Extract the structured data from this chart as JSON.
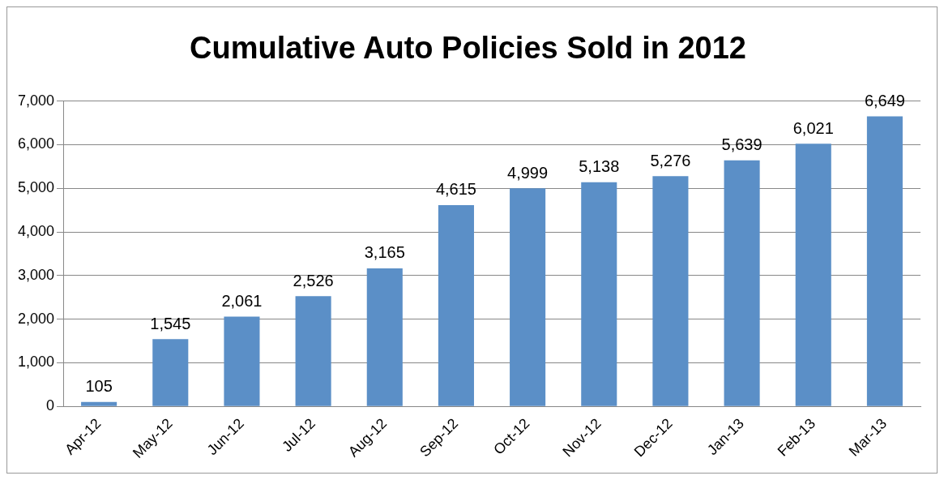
{
  "chart_data": {
    "type": "bar",
    "title": "Cumulative Auto Policies Sold in 2012",
    "categories": [
      "Apr-12",
      "May-12",
      "Jun-12",
      "Jul-12",
      "Aug-12",
      "Sep-12",
      "Oct-12",
      "Nov-12",
      "Dec-12",
      "Jan-13",
      "Feb-13",
      "Mar-13"
    ],
    "values": [
      105,
      1545,
      2061,
      2526,
      3165,
      4615,
      4999,
      5138,
      5276,
      5639,
      6021,
      6649
    ],
    "color": "#5b8fc7",
    "ylim": [
      0,
      7000
    ],
    "yticks": [
      {
        "value": 0,
        "label": "0"
      },
      {
        "value": 1000,
        "label": "1,000"
      },
      {
        "value": 2000,
        "label": "2,000"
      },
      {
        "value": 3000,
        "label": "3,000"
      },
      {
        "value": 4000,
        "label": "4,000"
      },
      {
        "value": 5000,
        "label": "5,000"
      },
      {
        "value": 6000,
        "label": "6,000"
      },
      {
        "value": 7000,
        "label": "7,000"
      }
    ],
    "value_labels": [
      "105",
      "1,545",
      "2,061",
      "2,526",
      "3,165",
      "4,615",
      "4,999",
      "5,138",
      "5,276",
      "5,639",
      "6,021",
      "6,649"
    ],
    "grid": "y",
    "legend": false
  }
}
